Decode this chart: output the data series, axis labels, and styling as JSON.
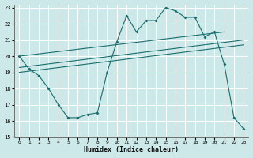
{
  "xlabel": "Humidex (Indice chaleur)",
  "xlim": [
    -0.5,
    23.5
  ],
  "ylim": [
    15,
    23.2
  ],
  "yticks": [
    15,
    16,
    17,
    18,
    19,
    20,
    21,
    22,
    23
  ],
  "xticks": [
    0,
    1,
    2,
    3,
    4,
    5,
    6,
    7,
    8,
    9,
    10,
    11,
    12,
    13,
    14,
    15,
    16,
    17,
    18,
    19,
    20,
    21,
    22,
    23
  ],
  "bg_color": "#cce8e8",
  "grid_color": "#b0d8d8",
  "line_color": "#1a6e6e",
  "line1_x": [
    0,
    1,
    2,
    3,
    4,
    5,
    6,
    7,
    8,
    9,
    10,
    11,
    12,
    13,
    14,
    15,
    16,
    17,
    18,
    19,
    20,
    21,
    22,
    23
  ],
  "line1_y": [
    20.0,
    19.2,
    18.8,
    18.0,
    17.0,
    16.2,
    16.2,
    16.4,
    16.5,
    19.0,
    20.9,
    22.5,
    21.5,
    22.2,
    22.2,
    23.0,
    22.8,
    22.4,
    22.4,
    21.2,
    21.5,
    19.5,
    16.2,
    15.5
  ],
  "line2_x": [
    0,
    23
  ],
  "line2_y": [
    19.3,
    21.0
  ],
  "line3_x": [
    0,
    21
  ],
  "line3_y": [
    20.0,
    21.5
  ],
  "line4_x": [
    0,
    23
  ],
  "line4_y": [
    19.0,
    20.7
  ]
}
